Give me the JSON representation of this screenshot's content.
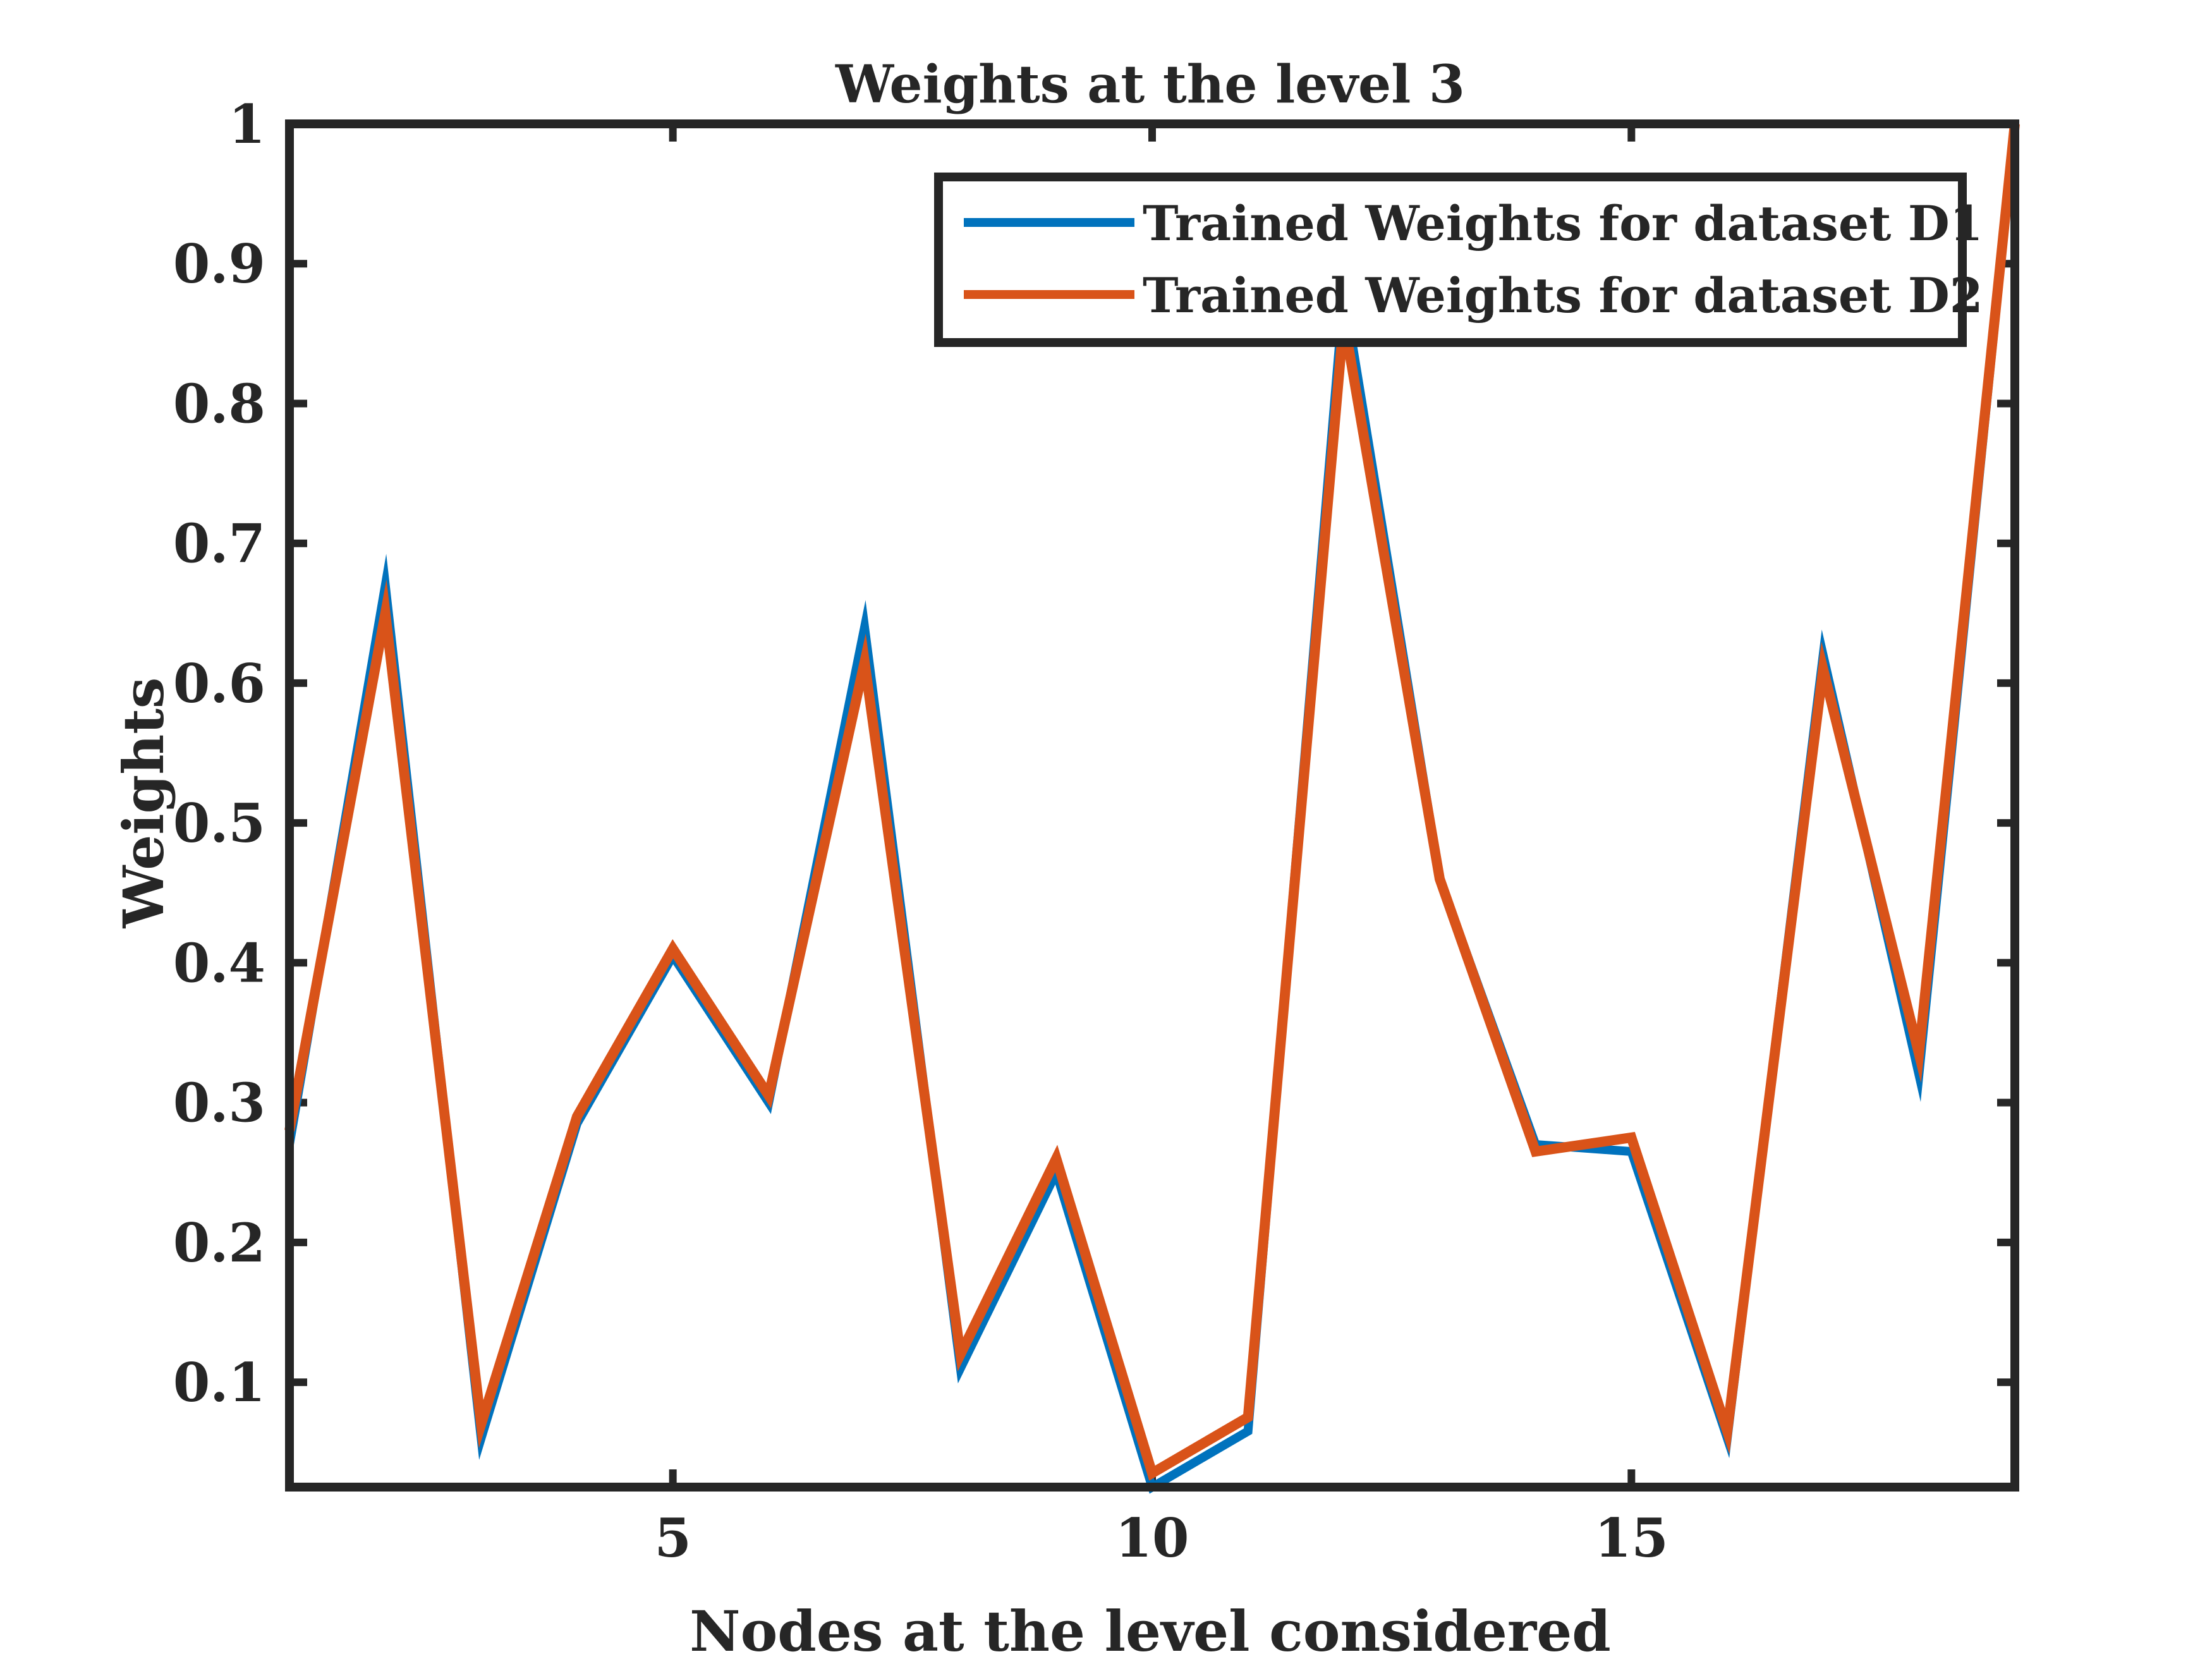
{
  "chart_data": {
    "type": "line",
    "title": "Weights at the level 3",
    "xlabel": "Nodes at the level considered",
    "ylabel": "Weights",
    "xlim": [
      1,
      19
    ],
    "ylim": [
      0.025,
      1
    ],
    "xticks": [
      5,
      10,
      15
    ],
    "xtick_labels": [
      "5",
      "10",
      "15"
    ],
    "yticks": [
      0.1,
      0.2,
      0.3,
      0.4,
      0.5,
      0.6,
      0.7,
      0.8,
      0.9,
      1
    ],
    "ytick_labels": [
      "0.1",
      "0.2",
      "0.3",
      "0.4",
      "0.5",
      "0.6",
      "0.7",
      "0.8",
      "0.9",
      "1"
    ],
    "grid": false,
    "legend_position": "top-right",
    "x": [
      1,
      2,
      3,
      4,
      5,
      6,
      7,
      8,
      9,
      10,
      11,
      12,
      13,
      14,
      15,
      16,
      17,
      18,
      19
    ],
    "series": [
      {
        "name": "Trained Weights for dataset D1",
        "color": "#0072BD",
        "values": [
          0.27,
          0.67,
          0.06,
          0.285,
          0.405,
          0.3,
          0.64,
          0.11,
          0.25,
          0.025,
          0.065,
          0.88,
          0.46,
          0.27,
          0.265,
          0.06,
          0.62,
          0.32,
          1.0
        ]
      },
      {
        "name": "Trained Weights for dataset D2",
        "color": "#D95319",
        "values": [
          0.28,
          0.65,
          0.07,
          0.29,
          0.41,
          0.305,
          0.615,
          0.12,
          0.26,
          0.035,
          0.075,
          0.86,
          0.46,
          0.265,
          0.275,
          0.065,
          0.61,
          0.335,
          1.0
        ]
      }
    ]
  }
}
